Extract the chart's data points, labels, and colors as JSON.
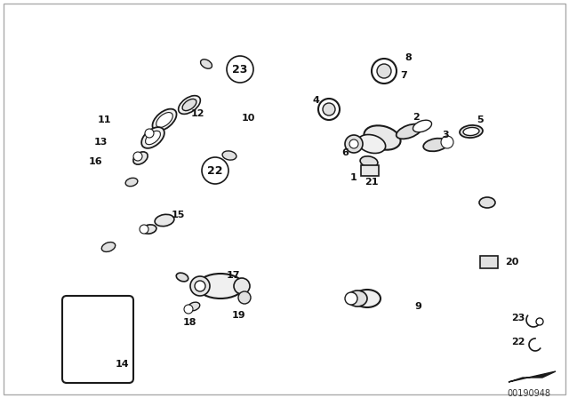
{
  "background_color": "#ffffff",
  "line_color": "#1a1a1a",
  "diagram_id": "00190948",
  "fig_w": 6.4,
  "fig_h": 4.48,
  "dpi": 100
}
